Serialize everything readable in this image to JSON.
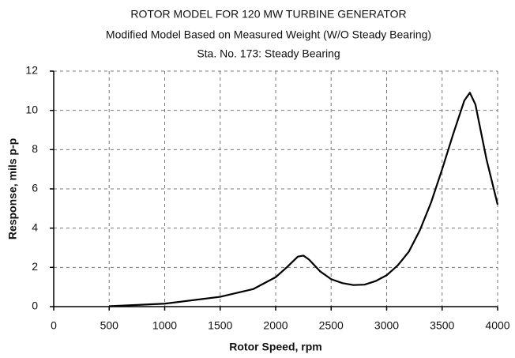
{
  "chart_data": {
    "type": "line",
    "title": "ROTOR MODEL FOR 120 MW TURBINE GENERATOR",
    "subtitle": "Modified Model Based on Measured Weight (W/O Steady Bearing)",
    "subtitle2": "Sta. No. 173: Steady Bearing",
    "x_label": "Rotor Speed, rpm",
    "y_label": "Response, mils p-p",
    "x": [
      500,
      1000,
      1500,
      1800,
      2000,
      2100,
      2200,
      2250,
      2300,
      2400,
      2500,
      2600,
      2700,
      2800,
      2900,
      3000,
      3100,
      3200,
      3300,
      3400,
      3500,
      3600,
      3700,
      3750,
      3800,
      3900,
      4000
    ],
    "series": [
      {
        "color": "#000000",
        "values": [
          0.02,
          0.15,
          0.5,
          0.9,
          1.5,
          2.0,
          2.55,
          2.6,
          2.4,
          1.8,
          1.4,
          1.2,
          1.1,
          1.12,
          1.3,
          1.6,
          2.1,
          2.8,
          3.9,
          5.3,
          7.0,
          8.8,
          10.5,
          10.9,
          10.3,
          7.5,
          5.2
        ]
      }
    ],
    "xlim": [
      0,
      4000
    ],
    "xticks": [
      0,
      500,
      1000,
      1500,
      2000,
      2500,
      3000,
      3500,
      4000
    ],
    "ylim": [
      0,
      12
    ],
    "yticks": [
      0,
      2,
      4,
      6,
      8,
      10,
      12
    ],
    "grid": true
  }
}
